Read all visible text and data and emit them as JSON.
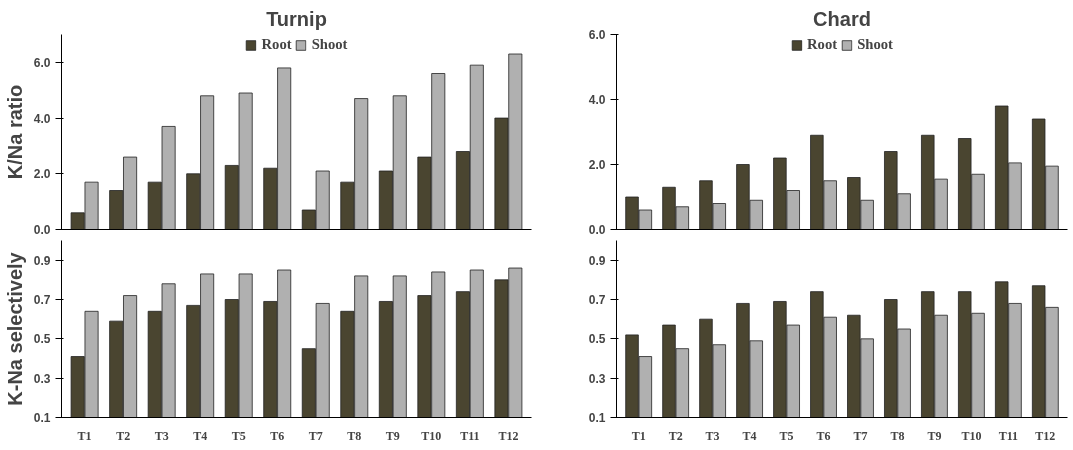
{
  "chart_data": [
    {
      "type": "bar",
      "title": "Turnip",
      "ylabel": "K/Na ratio",
      "categories": [
        null,
        null,
        null,
        null,
        null,
        null,
        null,
        null,
        null,
        null,
        null,
        null
      ],
      "series": [
        {
          "name": "Root",
          "color": "#4a4530",
          "values": [
            0.6,
            1.4,
            1.7,
            2.0,
            2.3,
            2.2,
            0.7,
            1.7,
            2.1,
            2.6,
            2.8,
            4.0
          ]
        },
        {
          "name": "Shoot",
          "color": "#b0b0b0",
          "values": [
            1.7,
            2.6,
            3.7,
            4.8,
            4.9,
            5.8,
            2.1,
            4.7,
            4.8,
            5.6,
            5.9,
            6.3
          ]
        }
      ],
      "ylim": [
        0,
        7
      ],
      "yticks": [
        {
          "value": 0,
          "label": "0.0"
        },
        {
          "value": 2,
          "label": "2.0"
        },
        {
          "value": 4,
          "label": "4.0"
        },
        {
          "value": 6,
          "label": "6.0"
        }
      ],
      "legend": "top",
      "grid": false
    },
    {
      "type": "bar",
      "title": "Chard",
      "categories": [
        null,
        null,
        null,
        null,
        null,
        null,
        null,
        null,
        null,
        null,
        null,
        null
      ],
      "series": [
        {
          "name": "Root",
          "color": "#4a4530",
          "values": [
            1.0,
            1.3,
            1.5,
            2.0,
            2.2,
            2.9,
            1.6,
            2.4,
            2.9,
            2.8,
            3.8,
            3.4
          ]
        },
        {
          "name": "Shoot",
          "color": "#b0b0b0",
          "values": [
            0.6,
            0.7,
            0.8,
            0.9,
            1.2,
            1.5,
            0.9,
            1.1,
            1.55,
            1.7,
            2.05,
            1.95
          ]
        }
      ],
      "ylim": [
        0,
        6
      ],
      "yticks": [
        {
          "value": 0,
          "label": "0.0"
        },
        {
          "value": 2,
          "label": "2.0"
        },
        {
          "value": 4,
          "label": "4.0"
        },
        {
          "value": 6,
          "label": "6.0"
        }
      ],
      "legend": "top",
      "grid": false
    },
    {
      "type": "bar",
      "ylabel": "K-Na selectively",
      "categories": [
        "T1",
        "T2",
        "T3",
        "T4",
        "T5",
        "T6",
        "T7",
        "T8",
        "T9",
        "T10",
        "T11",
        "T12"
      ],
      "series": [
        {
          "color": "#4a4530",
          "values": [
            0.41,
            0.59,
            0.64,
            0.67,
            0.7,
            0.69,
            0.45,
            0.64,
            0.69,
            0.72,
            0.74,
            0.8
          ]
        },
        {
          "color": "#b0b0b0",
          "values": [
            0.64,
            0.72,
            0.78,
            0.83,
            0.83,
            0.85,
            0.68,
            0.82,
            0.82,
            0.84,
            0.85,
            0.86
          ]
        }
      ],
      "ylim": [
        0.1,
        1.0
      ],
      "yticks": [
        0.1,
        0.3,
        0.5,
        0.7,
        0.9
      ],
      "grid": false
    },
    {
      "type": "bar",
      "categories": [
        "T1",
        "T2",
        "T3",
        "T4",
        "T5",
        "T6",
        "T7",
        "T8",
        "T9",
        "T10",
        "T11",
        "T12"
      ],
      "series": [
        {
          "color": "#4a4530",
          "values": [
            0.52,
            0.57,
            0.6,
            0.68,
            0.69,
            0.74,
            0.62,
            0.7,
            0.74,
            0.74,
            0.79,
            0.77
          ]
        },
        {
          "color": "#b0b0b0",
          "values": [
            0.41,
            0.45,
            0.47,
            0.49,
            0.57,
            0.61,
            0.5,
            0.55,
            0.62,
            0.63,
            0.68,
            0.66
          ]
        }
      ],
      "ylim": [
        0.1,
        1.0
      ],
      "yticks": [
        0.1,
        0.3,
        0.5,
        0.7,
        0.9
      ],
      "grid": false
    }
  ]
}
